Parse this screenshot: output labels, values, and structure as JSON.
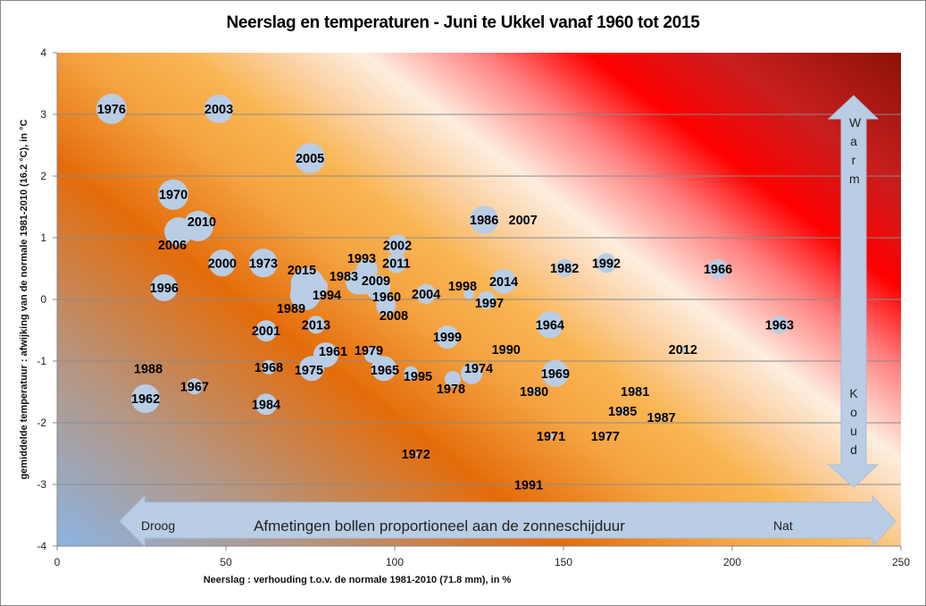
{
  "chart_data": {
    "type": "scatter",
    "subtype": "bubble",
    "title": "Neerslag en temperaturen - Juni te Ukkel vanaf 1960 tot 2015",
    "xlabel": "Neerslag : verhouding t.o.v. de normale 1981-2010 (71.8 mm), in %",
    "ylabel": "gemiddelde temperatuur : afwijking van de normale 1981-2010 (16.2 °C), in °C",
    "xlim": [
      0,
      250
    ],
    "ylim": [
      -4,
      4
    ],
    "xticks": [
      "0",
      "50",
      "100",
      "150",
      "200",
      "250"
    ],
    "yticks": [
      "4",
      "3",
      "2",
      "1",
      "0",
      "-1",
      "-2",
      "-3",
      "-4"
    ],
    "grid": "horizontal",
    "bubble_color": "#b9cde5",
    "highlight_color": "#ffff00",
    "highlight_year": "2015",
    "annotations": {
      "horizontal_arrow": {
        "left": "Droog",
        "center": "Afmetingen bollen proportioneel aan de zonneschijduur",
        "right": "Nat"
      },
      "vertical_arrow": {
        "top": "Warm",
        "bottom": "Koud"
      }
    },
    "points_columns": [
      "year",
      "precip_pct",
      "temp_anomaly",
      "relative_sunshine"
    ],
    "points": [
      [
        "1976",
        16.1,
        3.09,
        17
      ],
      [
        "2003",
        47.9,
        3.09,
        16
      ],
      [
        "2005",
        74.9,
        2.29,
        17
      ],
      [
        "1970",
        34.4,
        1.7,
        17
      ],
      [
        "2006",
        36.0,
        1.1,
        16
      ],
      [
        "2010",
        41.8,
        1.19,
        17
      ],
      [
        "2000",
        48.9,
        0.59,
        15
      ],
      [
        "1973",
        61.1,
        0.59,
        16
      ],
      [
        "1996",
        31.7,
        0.19,
        15
      ],
      [
        "1989",
        73.5,
        0.07,
        17
      ],
      [
        "2015",
        74.2,
        0.24,
        19
      ],
      [
        "1994",
        77.0,
        0.2,
        12
      ],
      [
        "1993",
        91.8,
        0.48,
        12
      ],
      [
        "1983",
        89.2,
        0.28,
        14
      ],
      [
        "2009",
        90.2,
        0.28,
        14
      ],
      [
        "1960",
        95.0,
        0.19,
        14
      ],
      [
        "2008",
        97.4,
        -0.1,
        11
      ],
      [
        "2002",
        100.8,
        0.88,
        12
      ],
      [
        "2011",
        100.5,
        0.59,
        11
      ],
      [
        "2004",
        109.3,
        0.09,
        11
      ],
      [
        "1998",
        122.0,
        0.09,
        6
      ],
      [
        "1997",
        127.2,
        -0.01,
        10
      ],
      [
        "1986",
        126.5,
        1.29,
        16
      ],
      [
        "2007",
        138.0,
        1.29,
        2
      ],
      [
        "2014",
        132.3,
        0.29,
        14
      ],
      [
        "1982",
        150.3,
        0.51,
        10
      ],
      [
        "1992",
        162.7,
        0.59,
        11
      ],
      [
        "1966",
        195.8,
        0.49,
        11
      ],
      [
        "1963",
        214.0,
        -0.41,
        10
      ],
      [
        "1964",
        146.0,
        -0.41,
        15
      ],
      [
        "1999",
        115.6,
        -0.61,
        13
      ],
      [
        "1990",
        133.0,
        -0.81,
        2
      ],
      [
        "2012",
        185.4,
        -0.81,
        3
      ],
      [
        "2001",
        61.9,
        -0.51,
        12
      ],
      [
        "2013",
        76.7,
        -0.41,
        10
      ],
      [
        "1961",
        79.6,
        -0.9,
        14
      ],
      [
        "1979",
        93.4,
        -0.9,
        9
      ],
      [
        "1975",
        75.4,
        -1.12,
        14
      ],
      [
        "1965",
        96.8,
        -1.12,
        14
      ],
      [
        "1995",
        104.8,
        -1.2,
        8
      ],
      [
        "1978",
        117.2,
        -1.29,
        9
      ],
      [
        "1974",
        122.8,
        -1.2,
        12
      ],
      [
        "1969",
        147.6,
        -1.2,
        15
      ],
      [
        "1980",
        141.3,
        -1.49,
        4
      ],
      [
        "1968",
        62.7,
        -1.1,
        8
      ],
      [
        "1988",
        27.0,
        -1.12,
        1
      ],
      [
        "1967",
        40.7,
        -1.41,
        9
      ],
      [
        "1962",
        26.2,
        -1.61,
        16
      ],
      [
        "1984",
        61.9,
        -1.7,
        12
      ],
      [
        "1981",
        171.2,
        -1.49,
        2
      ],
      [
        "1985",
        167.5,
        -1.81,
        4
      ],
      [
        "1987",
        179.0,
        -1.91,
        2
      ],
      [
        "1971",
        146.3,
        -2.22,
        3
      ],
      [
        "1977",
        162.4,
        -2.22,
        2
      ],
      [
        "1972",
        106.3,
        -2.51,
        2
      ],
      [
        "1991",
        139.7,
        -3.01,
        1
      ]
    ]
  }
}
